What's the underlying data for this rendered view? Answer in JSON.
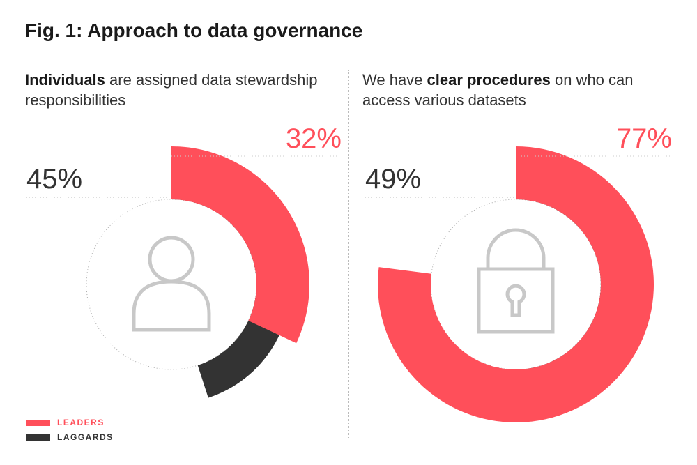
{
  "title": "Fig. 1: Approach to data governance",
  "colors": {
    "leaders": "#ff4f5a",
    "laggards": "#333333",
    "icon": "#c8c8c8"
  },
  "legend": [
    {
      "label": "LEADERS",
      "series": "leaders"
    },
    {
      "label": "LAGGARDS",
      "series": "laggards"
    }
  ],
  "chart_data": [
    {
      "type": "pie",
      "heading": {
        "pre": "",
        "bold": "Individuals",
        "post": " are assigned data stewardship responsibilities"
      },
      "icon": "person-icon",
      "series": [
        {
          "name": "Leaders",
          "value": 32,
          "label": "32%"
        },
        {
          "name": "Laggards",
          "value": 45,
          "label": "45%"
        }
      ]
    },
    {
      "type": "pie",
      "heading": {
        "pre": "We have ",
        "bold": "clear procedures",
        "post": " on who can access various datasets"
      },
      "icon": "padlock-icon",
      "series": [
        {
          "name": "Leaders",
          "value": 77,
          "label": "77%"
        },
        {
          "name": "Laggards",
          "value": 49,
          "label": "49%"
        }
      ]
    }
  ]
}
